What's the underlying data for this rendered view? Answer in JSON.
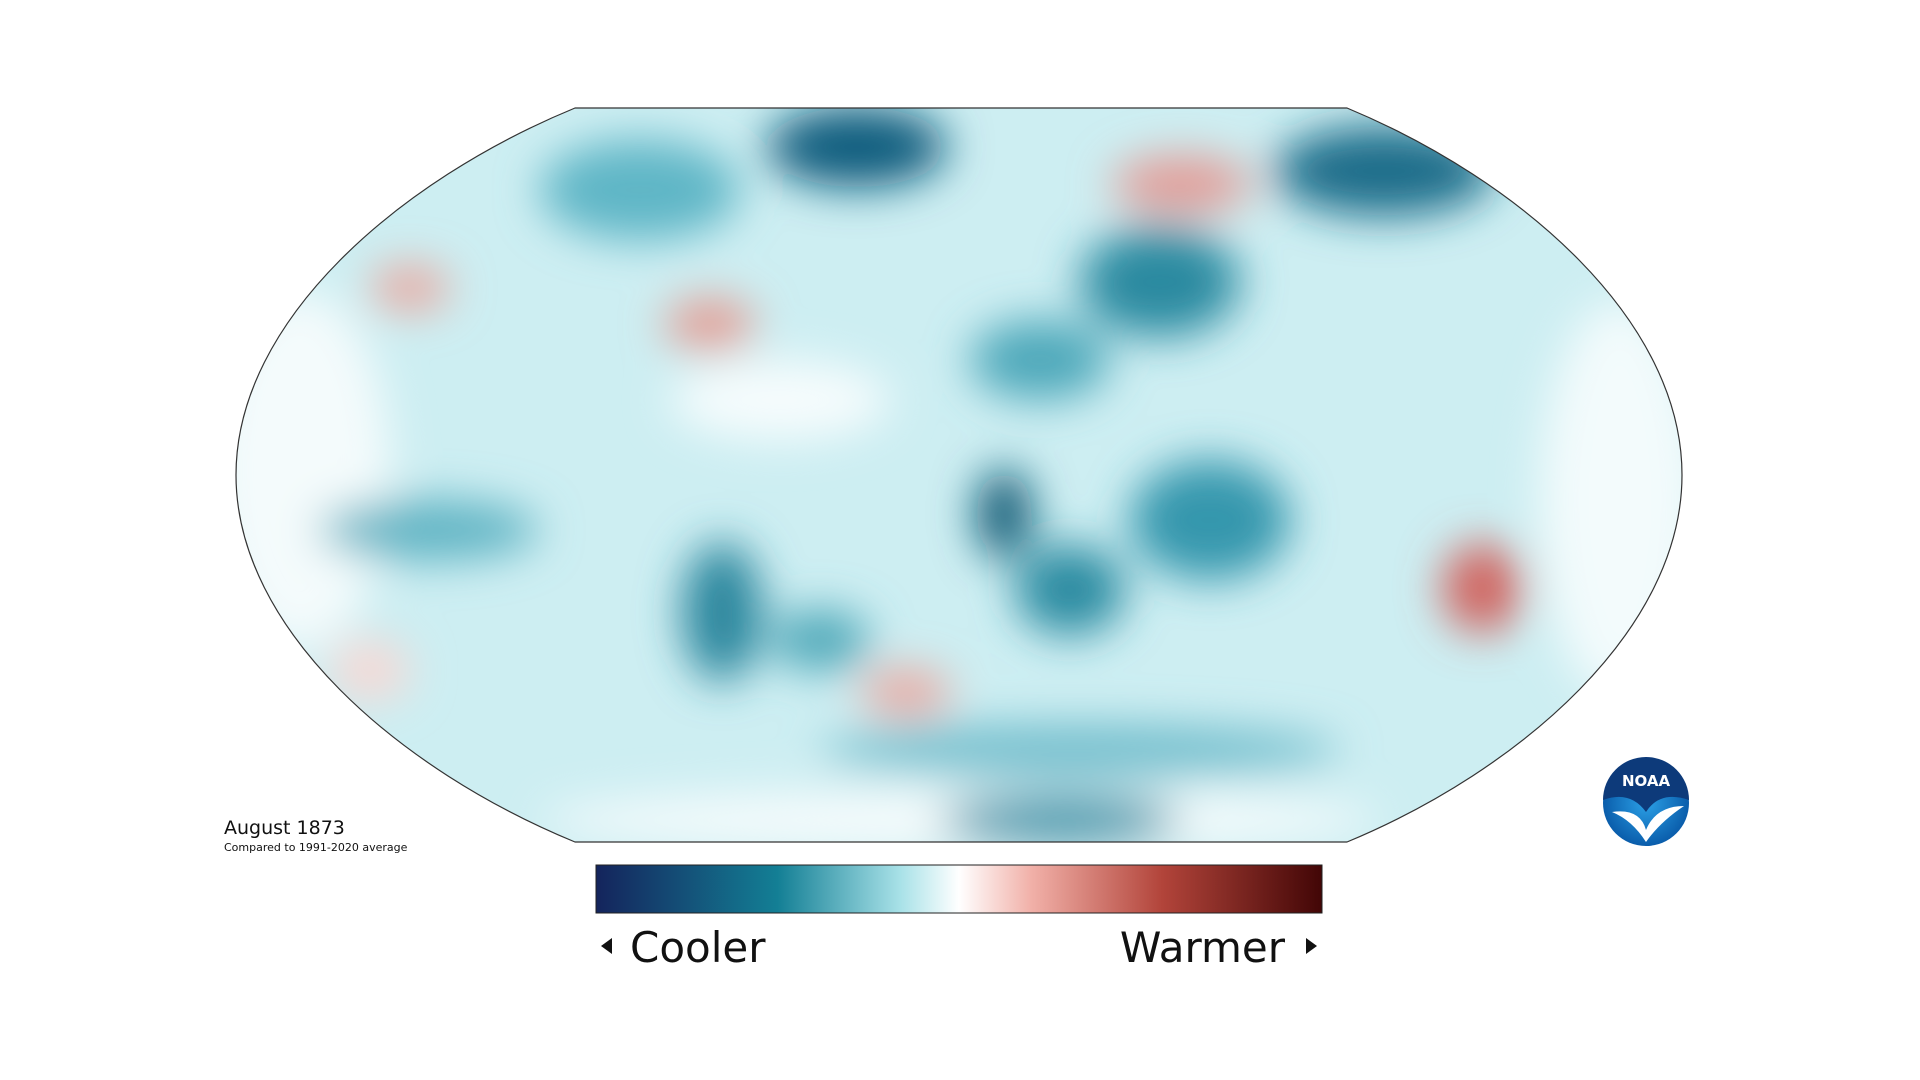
{
  "map": {
    "title": "August 1873",
    "subtitle": "Compared to 1991-2020 average"
  },
  "legend": {
    "low_label": "Cooler",
    "high_label": "Warmer"
  },
  "logo": {
    "text": "NOAA"
  }
}
